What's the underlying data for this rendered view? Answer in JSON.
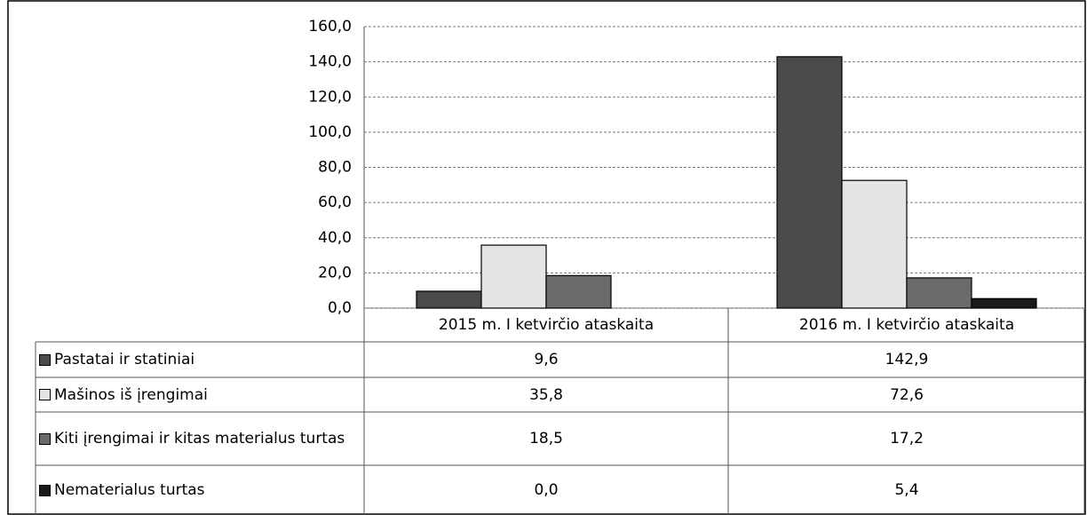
{
  "chart_data": {
    "type": "bar",
    "categories": [
      "2015 m. I ketvirčio ataskaita",
      "2016 m. I ketvirčio ataskaita"
    ],
    "series": [
      {
        "name": "Pastatai ir statiniai",
        "color": "#4a4a4a",
        "values": [
          9.6,
          142.9
        ],
        "value_labels": [
          "9,6",
          "142,9"
        ]
      },
      {
        "name": "Mašinos iš įrengimai",
        "color": "#e4e4e4",
        "values": [
          35.8,
          72.6
        ],
        "value_labels": [
          "35,8",
          "72,6"
        ]
      },
      {
        "name": "Kiti įrengimai ir kitas materialus turtas",
        "color": "#6a6a6a",
        "values": [
          18.5,
          17.2
        ],
        "value_labels": [
          "18,5",
          "17,2"
        ]
      },
      {
        "name": "Nematerialus turtas",
        "color": "#1a1a1a",
        "values": [
          0.0,
          5.4
        ],
        "value_labels": [
          "0,0",
          "5,4"
        ]
      }
    ],
    "ylim": [
      0,
      160
    ],
    "yticks": [
      {
        "value": 0,
        "label": "0,0"
      },
      {
        "value": 20,
        "label": "20,0"
      },
      {
        "value": 40,
        "label": "40,0"
      },
      {
        "value": 60,
        "label": "60,0"
      },
      {
        "value": 80,
        "label": "80,0"
      },
      {
        "value": 100,
        "label": "100,0"
      },
      {
        "value": 120,
        "label": "120,0"
      },
      {
        "value": 140,
        "label": "140,0"
      },
      {
        "value": 160,
        "label": "160,0"
      }
    ],
    "grid": true
  }
}
